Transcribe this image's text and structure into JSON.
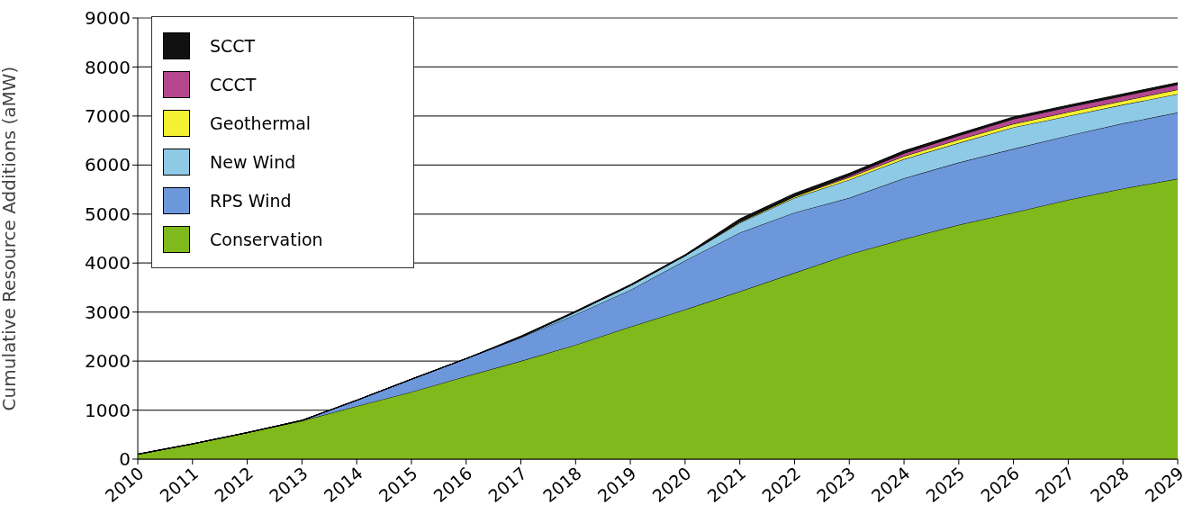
{
  "chart_data": {
    "type": "area",
    "stacked": true,
    "ylabel": "Cumulative Resource Additions (aMW)",
    "categories": [
      "2010",
      "2011",
      "2012",
      "2013",
      "2014",
      "2015",
      "2016",
      "2017",
      "2018",
      "2019",
      "2020",
      "2021",
      "2022",
      "2023",
      "2024",
      "2025",
      "2026",
      "2027",
      "2028",
      "2029"
    ],
    "ylim": [
      0,
      9000
    ],
    "yticks": [
      0,
      1000,
      2000,
      3000,
      4000,
      5000,
      6000,
      7000,
      8000,
      9000
    ],
    "grid": "y",
    "legend": "top left",
    "series": [
      {
        "name": "Conservation",
        "color": "#80b91c",
        "values": [
          100,
          310,
          540,
          780,
          1080,
          1370,
          1690,
          2000,
          2330,
          2700,
          3050,
          3420,
          3800,
          4180,
          4490,
          4780,
          5030,
          5290,
          5520,
          5720
        ]
      },
      {
        "name": "RPS Wind",
        "color": "#6d97db",
        "values": [
          0,
          0,
          0,
          10,
          120,
          260,
          360,
          480,
          620,
          750,
          1000,
          1200,
          1230,
          1150,
          1240,
          1270,
          1300,
          1310,
          1330,
          1350
        ]
      },
      {
        "name": "New Wind",
        "color": "#8ecae6",
        "values": [
          0,
          0,
          0,
          0,
          0,
          0,
          0,
          10,
          50,
          90,
          100,
          200,
          300,
          370,
          390,
          400,
          440,
          400,
          380,
          380
        ]
      },
      {
        "name": "Geothermal",
        "color": "#f4f032",
        "values": [
          0,
          0,
          0,
          0,
          0,
          0,
          0,
          0,
          0,
          0,
          0,
          20,
          30,
          50,
          60,
          70,
          70,
          80,
          80,
          90
        ]
      },
      {
        "name": "CCCT",
        "color": "#b5478f",
        "values": [
          0,
          0,
          0,
          0,
          0,
          0,
          0,
          0,
          0,
          0,
          0,
          0,
          0,
          30,
          60,
          80,
          100,
          100,
          100,
          100
        ]
      },
      {
        "name": "SCCT",
        "color": "#111111",
        "values": [
          0,
          0,
          0,
          0,
          0,
          0,
          0,
          20,
          20,
          20,
          20,
          60,
          60,
          50,
          50,
          40,
          40,
          40,
          40,
          40
        ]
      }
    ]
  }
}
